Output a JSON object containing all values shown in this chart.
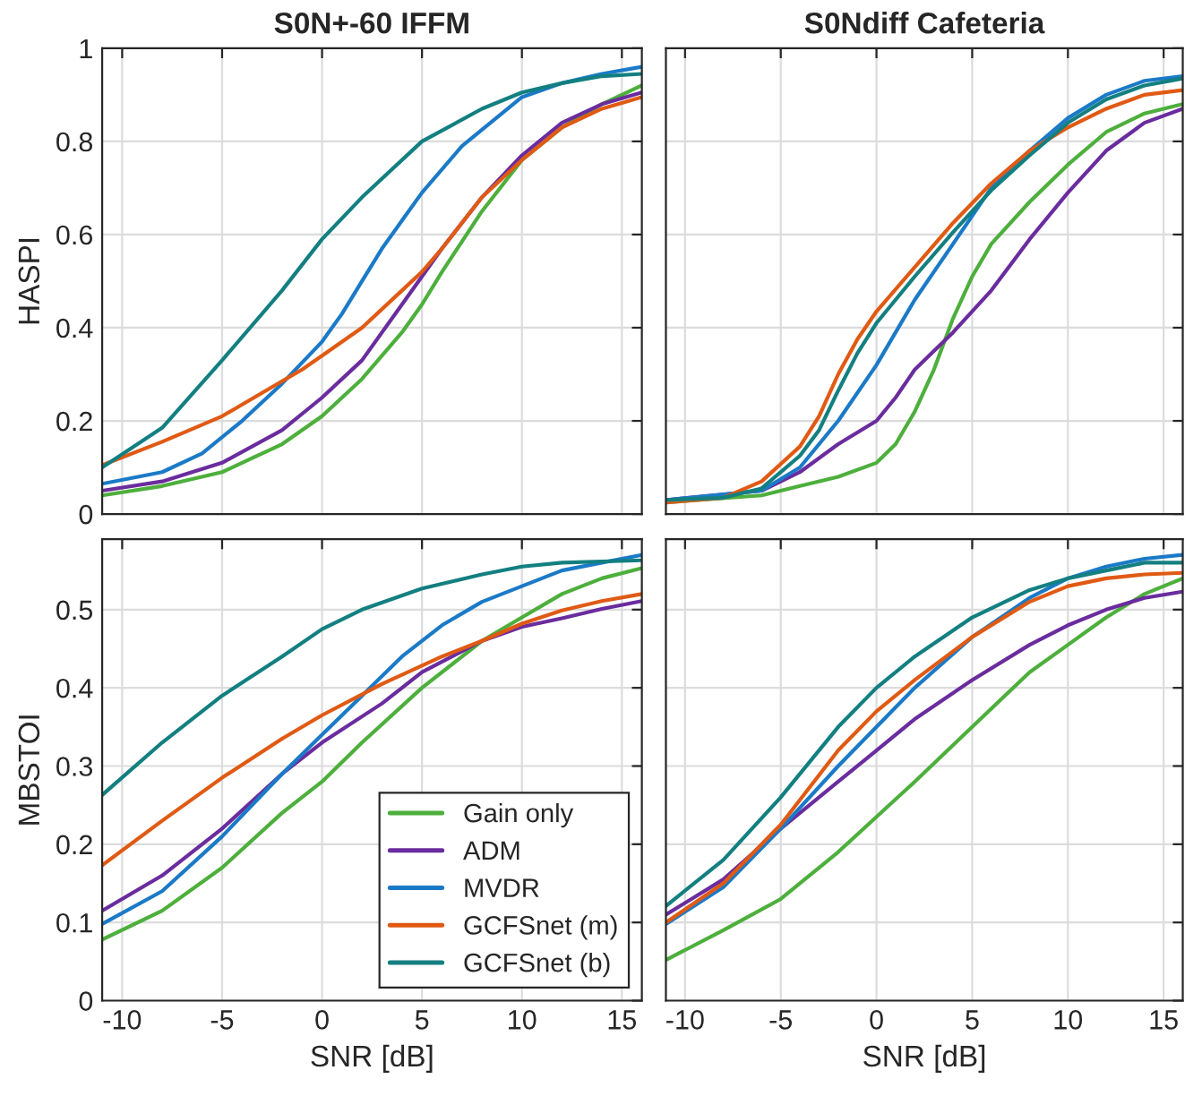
{
  "chart_data": [
    {
      "type": "line",
      "title": "S0N+-60 IFFM",
      "ylabel": "HASPI",
      "xlim": [
        -11,
        16
      ],
      "xticks": [
        -10,
        -5,
        0,
        5,
        10,
        15
      ],
      "ylim": [
        0,
        1
      ],
      "yticks": [
        0,
        0.2,
        0.4,
        0.6,
        0.8,
        1
      ],
      "grid": true,
      "legend": false,
      "tick_labels": "y",
      "series": [
        {
          "color": "#4daf3c",
          "x": [
            -11,
            -8,
            -5,
            -2,
            0,
            2,
            4,
            5,
            6,
            8,
            10,
            12,
            14,
            16
          ],
          "values": [
            0.04,
            0.06,
            0.09,
            0.15,
            0.21,
            0.29,
            0.39,
            0.45,
            0.52,
            0.65,
            0.76,
            0.83,
            0.88,
            0.92
          ]
        },
        {
          "color": "#6a2c9e",
          "x": [
            -11,
            -8,
            -5,
            -2,
            0,
            2,
            4,
            6,
            8,
            10,
            12,
            14,
            16
          ],
          "values": [
            0.05,
            0.07,
            0.11,
            0.18,
            0.25,
            0.33,
            0.45,
            0.57,
            0.68,
            0.77,
            0.84,
            0.88,
            0.905
          ]
        },
        {
          "color": "#1b7ac7",
          "x": [
            -11,
            -8,
            -6,
            -4,
            -2,
            0,
            1,
            2,
            3,
            4,
            5,
            7,
            9,
            10,
            12,
            14,
            16
          ],
          "values": [
            0.065,
            0.09,
            0.13,
            0.2,
            0.28,
            0.37,
            0.43,
            0.5,
            0.57,
            0.63,
            0.69,
            0.79,
            0.86,
            0.895,
            0.925,
            0.945,
            0.96
          ]
        },
        {
          "color": "#e05a14",
          "x": [
            -11,
            -8,
            -5,
            -3,
            -1,
            0,
            2,
            4,
            5,
            6,
            8,
            10,
            12,
            14,
            16
          ],
          "values": [
            0.105,
            0.155,
            0.21,
            0.26,
            0.31,
            0.34,
            0.4,
            0.48,
            0.52,
            0.57,
            0.68,
            0.76,
            0.83,
            0.87,
            0.895
          ]
        },
        {
          "color": "#137f80",
          "x": [
            -11,
            -8,
            -5,
            -2,
            0,
            2,
            5,
            8,
            10,
            12,
            14,
            16
          ],
          "values": [
            0.1,
            0.185,
            0.33,
            0.48,
            0.59,
            0.68,
            0.8,
            0.87,
            0.905,
            0.925,
            0.94,
            0.945
          ]
        }
      ]
    },
    {
      "type": "line",
      "title": "S0Ndiff Cafeteria",
      "xlim": [
        -11,
        16
      ],
      "xticks": [
        -10,
        -5,
        0,
        5,
        10,
        15
      ],
      "ylim": [
        0,
        1
      ],
      "yticks": [
        0,
        0.2,
        0.4,
        0.6,
        0.8,
        1
      ],
      "grid": true,
      "legend": false,
      "tick_labels": false,
      "series": [
        {
          "color": "#4daf3c",
          "x": [
            -11,
            -6,
            -4,
            -2,
            0,
            1,
            2,
            3,
            4,
            5,
            6,
            8,
            10,
            12,
            14,
            16
          ],
          "values": [
            0.025,
            0.04,
            0.06,
            0.08,
            0.11,
            0.15,
            0.22,
            0.31,
            0.42,
            0.51,
            0.58,
            0.67,
            0.75,
            0.82,
            0.86,
            0.88
          ]
        },
        {
          "color": "#6a2c9e",
          "x": [
            -11,
            -6,
            -4,
            -2,
            0,
            1,
            2,
            4,
            6,
            8,
            10,
            12,
            14,
            16
          ],
          "values": [
            0.03,
            0.05,
            0.09,
            0.15,
            0.2,
            0.25,
            0.31,
            0.39,
            0.48,
            0.59,
            0.69,
            0.78,
            0.84,
            0.87
          ]
        },
        {
          "color": "#1b7ac7",
          "x": [
            -11,
            -6,
            -4,
            -2,
            0,
            1,
            2,
            4,
            6,
            8,
            10,
            12,
            14,
            16
          ],
          "values": [
            0.03,
            0.05,
            0.1,
            0.2,
            0.32,
            0.39,
            0.46,
            0.58,
            0.7,
            0.78,
            0.85,
            0.9,
            0.93,
            0.94
          ]
        },
        {
          "color": "#e05a14",
          "x": [
            -11,
            -8,
            -6,
            -4,
            -3,
            -2,
            -1,
            0,
            2,
            4,
            6,
            8,
            10,
            12,
            14,
            16
          ],
          "values": [
            0.025,
            0.035,
            0.07,
            0.145,
            0.21,
            0.3,
            0.375,
            0.435,
            0.53,
            0.625,
            0.71,
            0.78,
            0.83,
            0.87,
            0.9,
            0.91
          ]
        },
        {
          "color": "#137f80",
          "x": [
            -11,
            -8,
            -6,
            -4,
            -3,
            -2,
            -1,
            0,
            2,
            4,
            6,
            8,
            10,
            12,
            14,
            16
          ],
          "values": [
            0.03,
            0.035,
            0.055,
            0.125,
            0.18,
            0.265,
            0.345,
            0.41,
            0.51,
            0.605,
            0.695,
            0.77,
            0.84,
            0.89,
            0.92,
            0.935
          ]
        }
      ]
    },
    {
      "type": "line",
      "xlabel": "SNR [dB]",
      "ylabel": "MBSTOI",
      "xlim": [
        -11,
        16
      ],
      "xticks": [
        -10,
        -5,
        0,
        5,
        10,
        15
      ],
      "ylim": [
        0,
        0.59
      ],
      "yticks": [
        0,
        0.1,
        0.2,
        0.3,
        0.4,
        0.5
      ],
      "grid": true,
      "legend": "bottom right",
      "series": [
        {
          "name": "Gain only",
          "color": "#4daf3c",
          "x": [
            -11,
            -8,
            -5,
            -2,
            0,
            2,
            5,
            8,
            10,
            12,
            14,
            16
          ],
          "values": [
            0.078,
            0.115,
            0.17,
            0.24,
            0.28,
            0.33,
            0.4,
            0.46,
            0.49,
            0.52,
            0.54,
            0.553
          ]
        },
        {
          "name": "ADM",
          "color": "#6a2c9e",
          "x": [
            -11,
            -8,
            -5,
            -2,
            0,
            3,
            5,
            8,
            10,
            12,
            14,
            16
          ],
          "values": [
            0.115,
            0.16,
            0.22,
            0.29,
            0.33,
            0.38,
            0.42,
            0.46,
            0.478,
            0.489,
            0.501,
            0.511
          ]
        },
        {
          "name": "MVDR",
          "color": "#1b7ac7",
          "x": [
            -11,
            -8,
            -5,
            -2,
            0,
            2,
            4,
            6,
            8,
            10,
            12,
            14,
            16
          ],
          "values": [
            0.098,
            0.14,
            0.21,
            0.29,
            0.34,
            0.39,
            0.44,
            0.48,
            0.51,
            0.53,
            0.55,
            0.56,
            0.57
          ]
        },
        {
          "name": "GCFSnet (m)",
          "color": "#e05a14",
          "x": [
            -11,
            -8,
            -5,
            -2,
            0,
            3,
            6,
            8,
            10,
            12,
            14,
            16
          ],
          "values": [
            0.173,
            0.23,
            0.285,
            0.335,
            0.365,
            0.405,
            0.44,
            0.46,
            0.482,
            0.499,
            0.511,
            0.52
          ]
        },
        {
          "name": "GCFSnet (b)",
          "color": "#137f80",
          "x": [
            -11,
            -8,
            -5,
            -2,
            0,
            2,
            5,
            8,
            10,
            12,
            16
          ],
          "values": [
            0.263,
            0.33,
            0.39,
            0.44,
            0.475,
            0.5,
            0.527,
            0.545,
            0.555,
            0.56,
            0.563
          ]
        }
      ]
    },
    {
      "type": "line",
      "xlabel": "SNR [dB]",
      "xlim": [
        -11,
        16
      ],
      "xticks": [
        -10,
        -5,
        0,
        5,
        10,
        15
      ],
      "ylim": [
        0,
        0.59
      ],
      "yticks": [
        0,
        0.1,
        0.2,
        0.3,
        0.4,
        0.5
      ],
      "grid": true,
      "legend": false,
      "tick_labels": "x",
      "series": [
        {
          "color": "#4daf3c",
          "x": [
            -11,
            -8,
            -5,
            -2,
            0,
            2,
            5,
            8,
            10,
            12,
            14,
            16
          ],
          "values": [
            0.052,
            0.09,
            0.13,
            0.19,
            0.235,
            0.28,
            0.35,
            0.42,
            0.455,
            0.49,
            0.52,
            0.54
          ]
        },
        {
          "color": "#6a2c9e",
          "x": [
            -11,
            -8,
            -5,
            -2,
            0,
            2,
            5,
            8,
            10,
            12,
            14,
            16
          ],
          "values": [
            0.11,
            0.155,
            0.22,
            0.28,
            0.32,
            0.36,
            0.41,
            0.455,
            0.48,
            0.5,
            0.515,
            0.523
          ]
        },
        {
          "color": "#1b7ac7",
          "x": [
            -11,
            -8,
            -5,
            -2,
            0,
            2,
            5,
            8,
            10,
            12,
            14,
            16
          ],
          "values": [
            0.098,
            0.145,
            0.22,
            0.3,
            0.35,
            0.4,
            0.465,
            0.515,
            0.54,
            0.555,
            0.565,
            0.57
          ]
        },
        {
          "color": "#e05a14",
          "x": [
            -11,
            -8,
            -5,
            -2,
            0,
            2,
            5,
            8,
            10,
            12,
            14,
            16
          ],
          "values": [
            0.1,
            0.15,
            0.225,
            0.32,
            0.37,
            0.41,
            0.465,
            0.51,
            0.53,
            0.54,
            0.545,
            0.547
          ]
        },
        {
          "color": "#137f80",
          "x": [
            -11,
            -8,
            -5,
            -2,
            0,
            2,
            5,
            8,
            10,
            12,
            14,
            16
          ],
          "values": [
            0.121,
            0.18,
            0.26,
            0.35,
            0.4,
            0.44,
            0.49,
            0.525,
            0.54,
            0.55,
            0.56,
            0.56
          ]
        }
      ]
    }
  ]
}
